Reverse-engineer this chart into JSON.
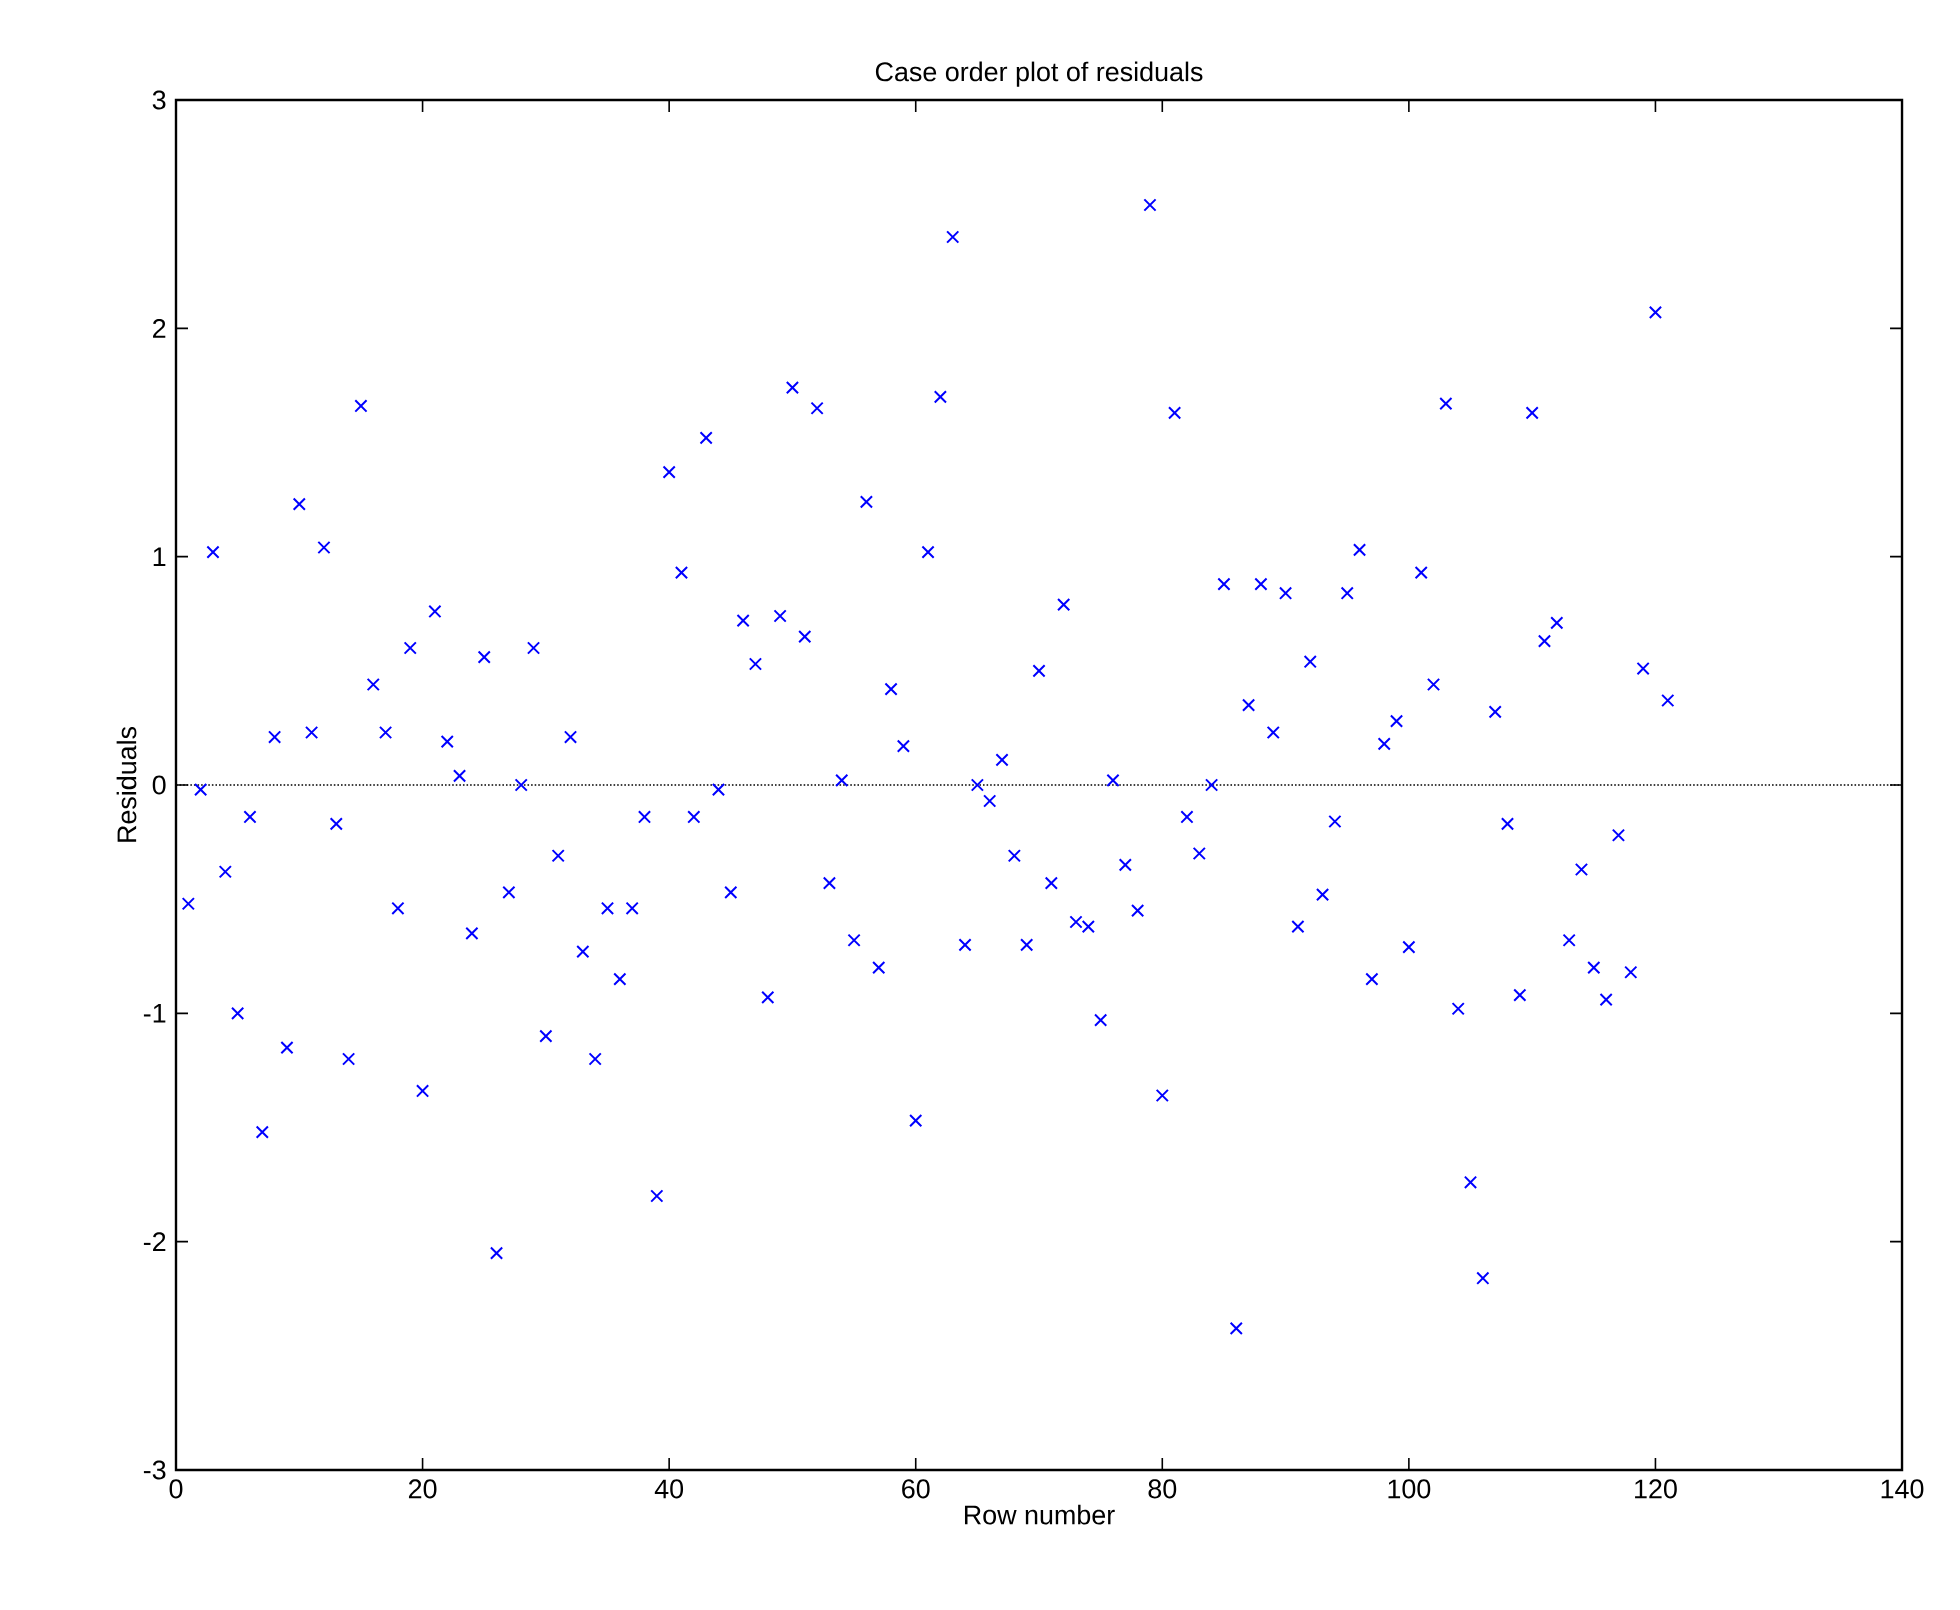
{
  "chart_data": {
    "type": "scatter",
    "title": "Case order plot of residuals",
    "xlabel": "Row number",
    "ylabel": "Residuals",
    "x": [
      1,
      2,
      3,
      4,
      5,
      6,
      7,
      8,
      9,
      10,
      11,
      12,
      13,
      14,
      15,
      16,
      17,
      18,
      19,
      20,
      21,
      22,
      23,
      24,
      25,
      26,
      27,
      28,
      29,
      30,
      31,
      32,
      33,
      34,
      35,
      36,
      37,
      38,
      39,
      40,
      41,
      42,
      43,
      44,
      45,
      46,
      47,
      48,
      49,
      50,
      51,
      52,
      53,
      54,
      55,
      56,
      57,
      58,
      59,
      60,
      61,
      62,
      63,
      64,
      65,
      66,
      67,
      68,
      69,
      70,
      71,
      72,
      73,
      74,
      75,
      76,
      77,
      78,
      79,
      80,
      81,
      82,
      83,
      84,
      85,
      86,
      87,
      88,
      89,
      90,
      91,
      92,
      93,
      94,
      95,
      96,
      97,
      98,
      99,
      100,
      101,
      102,
      103,
      104,
      105,
      106,
      107,
      108,
      109,
      110,
      111,
      112,
      113,
      114,
      115,
      116,
      117,
      118,
      119,
      120,
      121
    ],
    "series": [
      {
        "color": "#0000ff",
        "values": [
          -0.52,
          -0.02,
          1.02,
          -0.38,
          -1.0,
          -0.14,
          -1.52,
          0.21,
          -1.15,
          1.23,
          0.23,
          1.04,
          -0.17,
          -1.2,
          1.66,
          0.44,
          0.23,
          -0.54,
          0.6,
          -1.34,
          0.76,
          0.19,
          0.04,
          -0.65,
          0.56,
          -2.05,
          -0.47,
          0.0,
          0.6,
          -1.1,
          -0.31,
          0.21,
          -0.73,
          -1.2,
          -0.54,
          -0.85,
          -0.54,
          -0.14,
          -1.8,
          1.37,
          0.93,
          -0.14,
          1.52,
          -0.02,
          -0.47,
          0.72,
          0.53,
          -0.93,
          0.74,
          1.74,
          0.65,
          1.65,
          -0.43,
          0.02,
          -0.68,
          1.24,
          -0.8,
          0.42,
          0.17,
          -1.47,
          1.02,
          1.7,
          2.4,
          -0.7,
          0.0,
          -0.07,
          0.11,
          -0.31,
          -0.7,
          0.5,
          -0.43,
          0.79,
          -0.6,
          -0.62,
          -1.03,
          0.02,
          -0.35,
          -0.55,
          2.54,
          -1.36,
          1.63,
          -0.14,
          -0.3,
          0.0,
          0.88,
          -2.38,
          0.35,
          0.88,
          0.23,
          0.84,
          -0.62,
          0.54,
          -0.48,
          -0.16,
          0.84,
          1.03,
          -0.85,
          0.18,
          0.28,
          -0.71,
          0.93,
          0.44,
          1.67,
          -0.98,
          -1.74,
          -2.16,
          0.32,
          -0.17,
          -0.92,
          1.63,
          0.63,
          0.71,
          -0.68,
          -0.37,
          -0.8,
          -0.94,
          -0.22,
          -0.82,
          0.51,
          2.07,
          0.37
        ]
      }
    ],
    "marker": "cross",
    "xlim": [
      0,
      140
    ],
    "xticks": [
      0,
      20,
      40,
      60,
      80,
      100,
      120,
      140
    ],
    "ylim": [
      -3,
      3
    ],
    "yticks": [
      -3,
      -2,
      -1,
      0,
      1,
      2,
      3
    ],
    "ref_lines": [
      {
        "axis": "y",
        "value": 0,
        "color": "#000000",
        "line_style": "dotted"
      }
    ]
  }
}
